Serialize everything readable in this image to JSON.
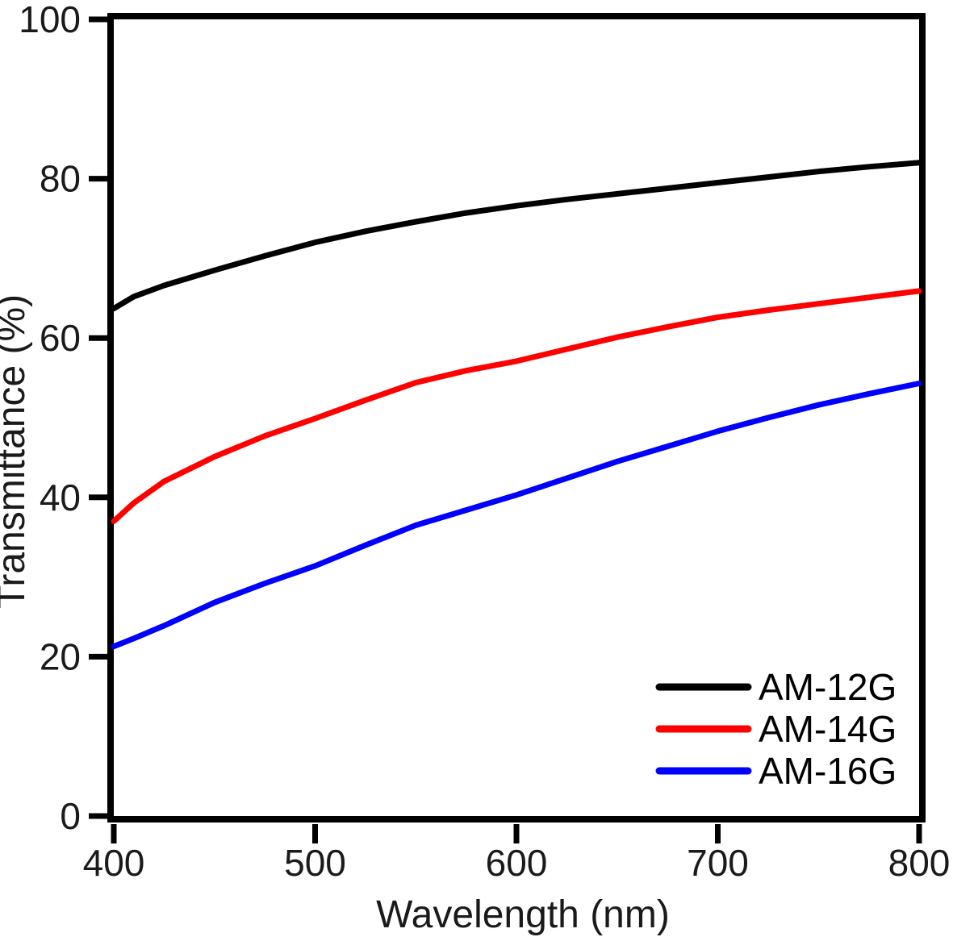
{
  "chart_data": {
    "type": "line",
    "title": "",
    "xlabel": "Wavelength (nm)",
    "ylabel": "Transmittance (%)",
    "xlim": [
      400,
      800
    ],
    "ylim": [
      0,
      100
    ],
    "x_ticks": [
      400,
      500,
      600,
      700,
      800
    ],
    "y_ticks": [
      0,
      20,
      40,
      60,
      80,
      100
    ],
    "grid": false,
    "legend_position": "lower right",
    "x": [
      400,
      410,
      425,
      450,
      475,
      500,
      525,
      550,
      575,
      600,
      625,
      650,
      675,
      700,
      725,
      750,
      775,
      800
    ],
    "series": [
      {
        "name": "AM-12G",
        "color": "#000000",
        "values": [
          63.7,
          65.2,
          66.6,
          68.5,
          70.3,
          72.0,
          73.4,
          74.6,
          75.7,
          76.6,
          77.4,
          78.1,
          78.8,
          79.5,
          80.2,
          80.9,
          81.5,
          82.0
        ]
      },
      {
        "name": "AM-14G",
        "color": "#ff0000",
        "values": [
          37.0,
          39.3,
          42.0,
          45.1,
          47.7,
          49.9,
          52.2,
          54.4,
          55.9,
          57.1,
          58.6,
          60.1,
          61.4,
          62.6,
          63.5,
          64.3,
          65.1,
          65.9
        ]
      },
      {
        "name": "AM-16G",
        "color": "#0000ff",
        "values": [
          21.3,
          22.3,
          23.9,
          26.8,
          29.2,
          31.4,
          34.0,
          36.5,
          38.4,
          40.3,
          42.4,
          44.5,
          46.4,
          48.3,
          50.0,
          51.6,
          53.0,
          54.3
        ]
      }
    ]
  }
}
